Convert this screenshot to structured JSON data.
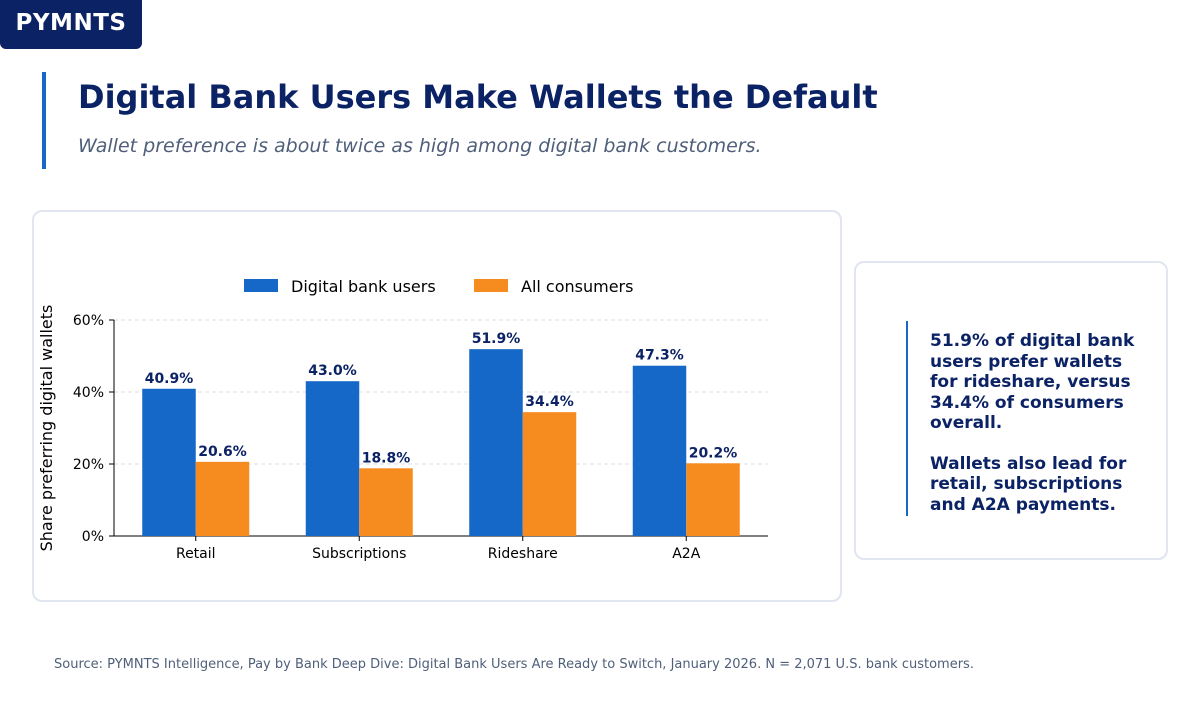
{
  "brand": {
    "logo_text": "PYMNTS",
    "accent": "#1567c8",
    "navy": "#0b2265"
  },
  "header": {
    "title": "Digital Bank Users Make Wallets the Default",
    "subtitle": "Wallet preference is about twice as high among digital bank customers."
  },
  "chart_data": {
    "type": "bar",
    "categories": [
      "Retail",
      "Subscriptions",
      "Rideshare",
      "A2A"
    ],
    "series": [
      {
        "name": "Digital bank users",
        "values": [
          40.9,
          43.0,
          51.9,
          47.3
        ],
        "color": "#1567c8",
        "labels": [
          "40.9%",
          "43.0%",
          "51.9%",
          "47.3%"
        ]
      },
      {
        "name": "All consumers",
        "values": [
          20.6,
          18.8,
          34.4,
          20.2
        ],
        "color": "#f68b1f",
        "labels": [
          "20.6%",
          "18.8%",
          "34.4%",
          "20.2%"
        ]
      }
    ],
    "ylabel": "Share preferring digital wallets",
    "xlabel": "",
    "ylim": [
      0,
      60
    ],
    "yticks": [
      0,
      20,
      40,
      60
    ],
    "ytick_labels": [
      "0%",
      "20%",
      "40%",
      "60%"
    ],
    "grid": true,
    "legend": "top-center"
  },
  "insight": {
    "paragraphs": [
      "51.9% of digital bank users prefer wallets for rideshare, versus 34.4% of consumers overall.",
      "Wallets also lead for retail, subscriptions and A2A payments."
    ]
  },
  "footer": {
    "source": "Source: PYMNTS Intelligence, Pay by Bank Deep Dive: Digital Bank Users Are Ready to Switch, January 2026. N = 2,071 U.S. bank customers."
  }
}
